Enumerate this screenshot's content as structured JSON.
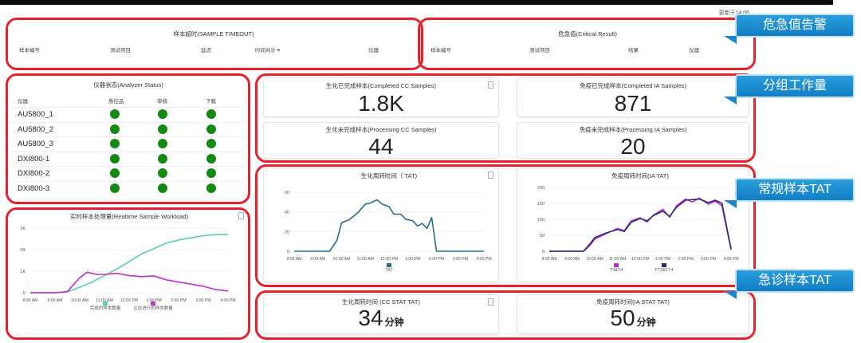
{
  "header": {
    "refresh_text": "更新于14:06"
  },
  "callouts": {
    "critical": "危急值告警",
    "workload": "分组工作量",
    "routine_tat": "常规样本TAT",
    "stat_tat": "急诊样本TAT"
  },
  "sample_timeout": {
    "title": "样本超时(SAMPLE TIMEOUT)",
    "columns": [
      "样本编号",
      "测试项目",
      "延迟",
      "时间共计 ▾",
      "仪器"
    ]
  },
  "critical_result": {
    "title": "危急值(Critical Result)",
    "columns": [
      "样本编号",
      "测试项目",
      "结果",
      "仪器"
    ]
  },
  "analyzer_status": {
    "title": "仪器状态(Analyzer Status)",
    "columns": [
      "仪器",
      "质控品",
      "审核",
      "下载"
    ],
    "rows": [
      {
        "name": "AU5800_1"
      },
      {
        "name": "AU5800_2"
      },
      {
        "name": "AU5800_3"
      },
      {
        "name": "DXI800-1"
      },
      {
        "name": "DXI800-2"
      },
      {
        "name": "DXI800-3"
      }
    ],
    "ok_color": "#128a12"
  },
  "kpis": {
    "cc_completed": {
      "label": "生化已完成样本(Completed CC Samples)",
      "value": "1.8K"
    },
    "ia_completed": {
      "label": "免疫已完成样本(Completed IA Samples)",
      "value": "871"
    },
    "cc_processing": {
      "label": "生化未完成样本(Processing CC Samples)",
      "value": "44"
    },
    "ia_processing": {
      "label": "免疫未完成样本(Processing IA Samples)",
      "value": "20"
    },
    "cc_stat_tat": {
      "label": "生化周转时间 (CC STAT TAT)",
      "value": "34",
      "unit": "分钟"
    },
    "ia_stat_tat": {
      "label": "免疫周转时间(IA STAT TAT)",
      "value": "50",
      "unit": "分钟"
    }
  },
  "chart_data": [
    {
      "id": "workload",
      "type": "line",
      "title": "实时样本处理量(Realtime Sample Workload)",
      "x_labels": [
        "8:00 AM",
        "9:00 AM",
        "10:00 AM",
        "11:00 AM",
        "12:00 PM",
        "1:00 PM",
        "2:00 PM",
        "3:00 PM",
        "4:00 PM"
      ],
      "y_ticks": [
        "0",
        "1K",
        "2K",
        "3K"
      ],
      "ylim": [
        0,
        3000
      ],
      "series": [
        {
          "name": "完成的样本数量",
          "color": "#4fd4a8",
          "x": [
            0,
            0.5,
            1,
            1.5,
            2,
            2.5,
            3,
            3.5,
            4,
            4.5,
            5,
            5.5,
            6,
            6.5,
            7,
            7.5,
            8
          ],
          "values": [
            0,
            0,
            0,
            50,
            250,
            500,
            800,
            1100,
            1450,
            1800,
            2050,
            2300,
            2450,
            2550,
            2650,
            2700,
            2700
          ]
        },
        {
          "name": "正在进行的样本数量",
          "color": "#c32ad0",
          "x": [
            0,
            0.5,
            1,
            1.5,
            2,
            2.3,
            2.7,
            3,
            3.5,
            4,
            4.5,
            5,
            5.5,
            6,
            6.5,
            7,
            7.5,
            8
          ],
          "values": [
            0,
            0,
            0,
            50,
            700,
            950,
            850,
            850,
            900,
            800,
            750,
            780,
            600,
            500,
            400,
            300,
            150,
            80
          ]
        }
      ]
    },
    {
      "id": "cc_tat",
      "type": "line",
      "title": "生化周转时间（ TAT)",
      "x_labels": [
        "8:00 AM",
        "9:00 AM",
        "10:00 AM",
        "11:00 AM",
        "12:00 PM",
        "1:00 PM",
        "2:00 PM",
        "3:00 PM",
        "4:00 PM"
      ],
      "y_ticks": [
        "0",
        "20",
        "40",
        "60"
      ],
      "ylim": [
        0,
        70
      ],
      "series": [
        {
          "name": "TAT",
          "color": "#2a6f86",
          "x": [
            0,
            1,
            1.5,
            1.8,
            2,
            2.3,
            2.7,
            3,
            3.2,
            3.5,
            3.7,
            4,
            4.2,
            4.5,
            4.7,
            5,
            5.2,
            5.4,
            5.6,
            5.8,
            6,
            6.2,
            6.5,
            7,
            7.5,
            8
          ],
          "values": [
            0,
            0,
            0,
            13,
            34,
            37,
            46,
            56,
            57,
            61,
            56,
            53,
            44,
            44,
            38,
            36,
            30,
            33,
            27,
            40,
            0,
            0,
            0,
            0,
            0,
            0
          ]
        }
      ]
    },
    {
      "id": "ia_tat",
      "type": "line",
      "title": "免疫周转时间(IA TAT)",
      "x_labels": [
        "8:00 AM",
        "9:00 AM",
        "10:00 AM",
        "11:00 AM",
        "12:00 PM",
        "1:00 PM",
        "2:00 PM",
        "3:00 PM",
        "4:00 PM"
      ],
      "y_ticks": [
        "0",
        "50",
        "100",
        "150",
        "200"
      ],
      "ylim": [
        0,
        210
      ],
      "series": [
        {
          "name": "T3&T4",
          "color": "#c32ad0",
          "x": [
            0,
            0.5,
            1,
            1.5,
            1.8,
            2,
            2.5,
            3,
            3.3,
            3.6,
            4,
            4.3,
            4.6,
            5,
            5.3,
            5.6,
            6,
            6.3,
            6.6,
            7,
            7.3,
            7.6,
            8
          ],
          "values": [
            0,
            0,
            0,
            0,
            20,
            40,
            58,
            75,
            68,
            100,
            110,
            96,
            120,
            138,
            112,
            150,
            172,
            162,
            175,
            155,
            165,
            150,
            5
          ]
        },
        {
          "name": "FT3&FT4",
          "color": "#2b2a6e",
          "x": [
            0,
            0.5,
            1,
            1.5,
            1.8,
            2,
            2.5,
            3,
            3.3,
            3.6,
            4,
            4.3,
            4.6,
            5,
            5.3,
            5.6,
            6,
            6.3,
            6.6,
            7,
            7.3,
            7.6,
            8
          ],
          "values": [
            0,
            0,
            0,
            0,
            25,
            45,
            60,
            72,
            65,
            95,
            108,
            100,
            118,
            132,
            115,
            145,
            168,
            170,
            172,
            160,
            168,
            158,
            8
          ]
        }
      ]
    }
  ]
}
